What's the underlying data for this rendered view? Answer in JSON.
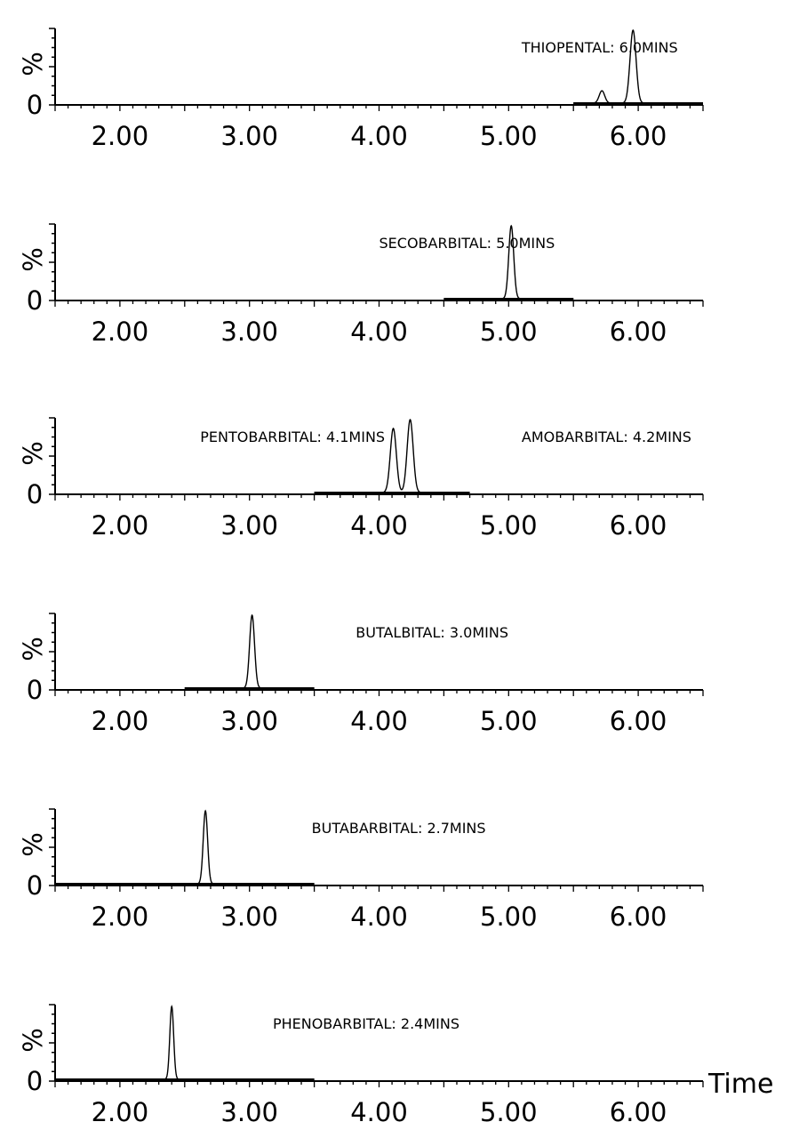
{
  "chart_data": [
    {
      "type": "line",
      "ylabel": "%",
      "ytick": "0",
      "xlim": [
        1.5,
        6.5
      ],
      "xticks": [
        "2.00",
        "3.00",
        "4.00",
        "5.00",
        "6.00"
      ],
      "baseline_range": [
        5.5,
        6.5
      ],
      "annotations": [
        {
          "text": "THIOPENTAL: 6.0MINS",
          "x": 5.1
        }
      ],
      "peaks": [
        {
          "rt": 5.72,
          "height": 0.17,
          "width": 0.05
        },
        {
          "rt": 5.96,
          "height": 1.0,
          "width": 0.055
        }
      ]
    },
    {
      "type": "line",
      "ylabel": "%",
      "ytick": "0",
      "xlim": [
        1.5,
        6.5
      ],
      "xticks": [
        "2.00",
        "3.00",
        "4.00",
        "5.00",
        "6.00"
      ],
      "baseline_range": [
        4.5,
        5.5
      ],
      "annotations": [
        {
          "text": "SECOBARBITAL: 5.0MINS",
          "x": 4.0
        }
      ],
      "peaks": [
        {
          "rt": 5.02,
          "height": 1.0,
          "width": 0.045
        }
      ]
    },
    {
      "type": "line",
      "ylabel": "%",
      "ytick": "0",
      "xlim": [
        1.5,
        6.5
      ],
      "xticks": [
        "2.00",
        "3.00",
        "4.00",
        "5.00",
        "6.00"
      ],
      "baseline_range": [
        3.5,
        4.7
      ],
      "annotations": [
        {
          "text": "PENTOBARBITAL: 4.1MINS",
          "x": 2.62
        },
        {
          "text": "AMOBARBITAL: 4.2MINS",
          "x": 5.1
        }
      ],
      "peaks": [
        {
          "rt": 4.11,
          "height": 0.88,
          "width": 0.055
        },
        {
          "rt": 4.24,
          "height": 1.0,
          "width": 0.055
        }
      ]
    },
    {
      "type": "line",
      "ylabel": "%",
      "ytick": "0",
      "xlim": [
        1.5,
        6.5
      ],
      "xticks": [
        "2.00",
        "3.00",
        "4.00",
        "5.00",
        "6.00"
      ],
      "baseline_range": [
        2.5,
        3.5
      ],
      "annotations": [
        {
          "text": "BUTALBITAL: 3.0MINS",
          "x": 3.82
        }
      ],
      "peaks": [
        {
          "rt": 3.02,
          "height": 1.0,
          "width": 0.045
        }
      ]
    },
    {
      "type": "line",
      "ylabel": "%",
      "ytick": "0",
      "xlim": [
        1.5,
        6.5
      ],
      "xticks": [
        "2.00",
        "3.00",
        "4.00",
        "5.00",
        "6.00"
      ],
      "baseline_range": [
        1.5,
        3.5
      ],
      "annotations": [
        {
          "text": "BUTABARBITAL: 2.7MINS",
          "x": 3.48
        }
      ],
      "peaks": [
        {
          "rt": 2.66,
          "height": 1.0,
          "width": 0.04
        }
      ]
    },
    {
      "type": "line",
      "ylabel": "%",
      "ytick": "0",
      "xlabel": "Time",
      "xlim": [
        1.5,
        6.5
      ],
      "xticks": [
        "2.00",
        "3.00",
        "4.00",
        "5.00",
        "6.00"
      ],
      "baseline_range": [
        1.5,
        3.5
      ],
      "annotations": [
        {
          "text": "PHENOBARBITAL: 2.4MINS",
          "x": 3.18
        }
      ],
      "peaks": [
        {
          "rt": 2.4,
          "height": 1.0,
          "width": 0.035
        }
      ]
    }
  ]
}
